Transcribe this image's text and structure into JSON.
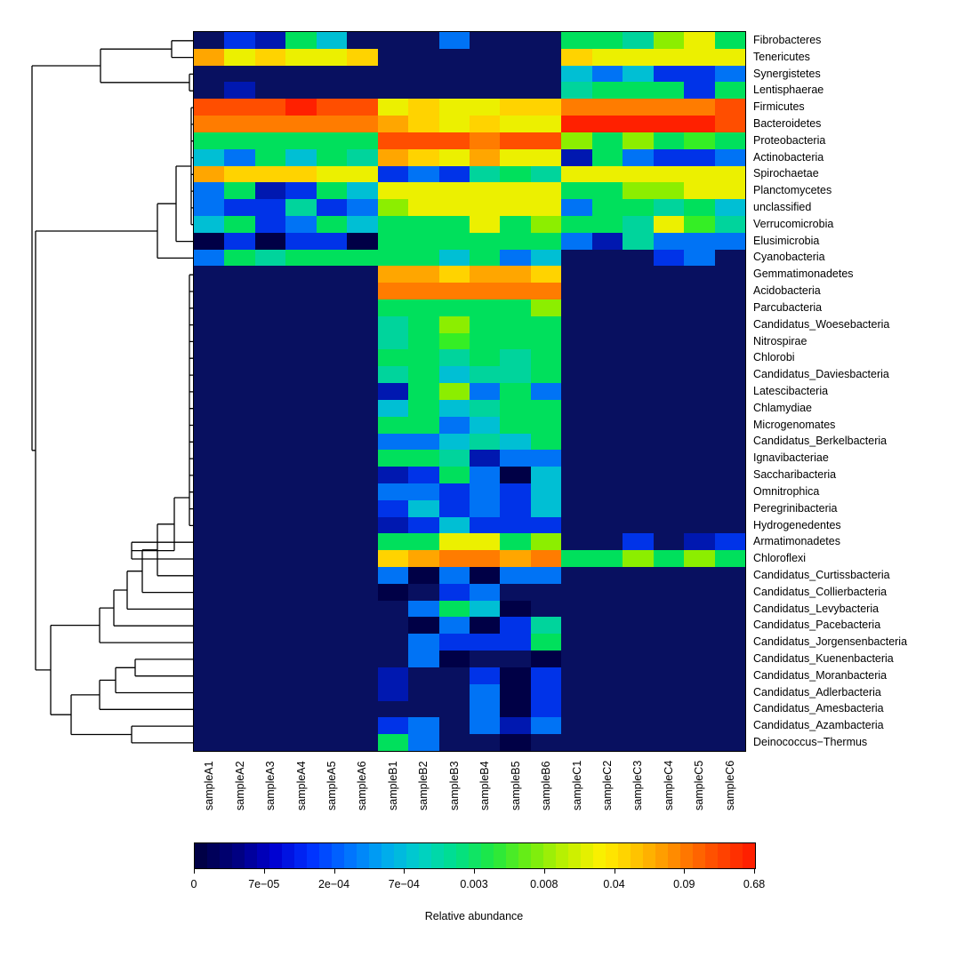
{
  "chart_data": {
    "type": "heatmap",
    "title": "",
    "legend_label": "Relative abundance",
    "layout": {
      "legend_position": "bottom",
      "row_dendrogram": "left",
      "row_labels": "right",
      "column_labels": "bottom-rotated"
    },
    "columns": [
      "sampleA1",
      "sampleA2",
      "sampleA3",
      "sampleA4",
      "sampleA5",
      "sampleA6",
      "sampleB1",
      "sampleB2",
      "sampleB3",
      "sampleB4",
      "sampleB5",
      "sampleB6",
      "sampleC1",
      "sampleC2",
      "sampleC3",
      "sampleC4",
      "sampleC5",
      "sampleC6"
    ],
    "rows": [
      "Fibrobacteres",
      "Tenericutes",
      "Synergistetes",
      "Lentisphaerae",
      "Firmicutes",
      "Bacteroidetes",
      "Proteobacteria",
      "Actinobacteria",
      "Spirochaetae",
      "Planctomycetes",
      "unclassified",
      "Verrucomicrobia",
      "Elusimicrobia",
      "Cyanobacteria",
      "Gemmatimonadetes",
      "Acidobacteria",
      "Parcubacteria",
      "Candidatus_Woesebacteria",
      "Nitrospirae",
      "Chlorobi",
      "Candidatus_Daviesbacteria",
      "Latescibacteria",
      "Chlamydiae",
      "Microgenomates",
      "Candidatus_Berkelbacteria",
      "Ignavibacteriae",
      "Saccharibacteria",
      "Omnitrophica",
      "Peregrinibacteria",
      "Hydrogenedentes",
      "Armatimonadetes",
      "Chloroflexi",
      "Candidatus_Curtissbacteria",
      "Candidatus_Collierbacteria",
      "Candidatus_Levybacteria",
      "Candidatus_Pacebacteria",
      "Candidatus_Jorgensenbacteria",
      "Candidatus_Kuenenbacteria",
      "Candidatus_Moranbacteria",
      "Candidatus_Adlerbacteria",
      "Candidatus_Amesbacteria",
      "Candidatus_Azambacteria",
      "Deinococcus−Thermus"
    ],
    "palette": {
      "z": {
        "hex": "#000046",
        "value": 0
      },
      "0": {
        "hex": "#081060",
        "value": 0
      },
      "1": {
        "hex": "#0018b0",
        "value": 5e-05
      },
      "2": {
        "hex": "#0033e8",
        "value": 0.00015
      },
      "3": {
        "hex": "#0073f5",
        "value": 0.0003
      },
      "4": {
        "hex": "#00bfd4",
        "value": 0.0007
      },
      "5": {
        "hex": "#00d49c",
        "value": 0.0015
      },
      "6": {
        "hex": "#00e05c",
        "value": 0.004
      },
      "7": {
        "hex": "#35ee25",
        "value": 0.008
      },
      "8": {
        "hex": "#8cee00",
        "value": 0.015
      },
      "9": {
        "hex": "#ecf000",
        "value": 0.03
      },
      "a": {
        "hex": "#ffd300",
        "value": 0.06
      },
      "b": {
        "hex": "#ffa600",
        "value": 0.09
      },
      "c": {
        "hex": "#ff7c00",
        "value": 0.15
      },
      "d": {
        "hex": "#ff4e00",
        "value": 0.3
      },
      "e": {
        "hex": "#ff2000",
        "value": 0.55
      }
    },
    "matrix": [
      "021640003000665896",
      "b9a99a000000a99999",
      "000000000000434223",
      "010000000000566626",
      "dddedd9a99aacccccd",
      "ccccccba9a99eeeeed",
      "666666dddcdd868676",
      "436465ba9b99163223",
      "baaa99232565999999",
      "361264999999668899",
      "322523899999366564",
      "462364666968665975",
      "z2z22z666666315333",
      "365666664634000230",
      "000000bbabba000000",
      "000000cccccc000000",
      "000000666668000000",
      "000000568666000000",
      "000000567666000000",
      "000000665656000000",
      "000000564556000000",
      "000000168363000000",
      "000000464566000000",
      "000000663466000000",
      "000000334546000000",
      "000000665133000000",
      "0000001263z4000000",
      "000000332324000000",
      "000000242324000000",
      "000000124222000000",
      "000000669968002012",
      "000000abccbc668686",
      "0000003z3z33000000",
      "000000z02300000000",
      "0000000364z0000000",
      "0000000z3z25000000",
      "000000032226000000",
      "00000003z00z000000",
      "0000001002z2000000",
      "0000001003z2000000",
      "0000000003z2000000",
      "000000230313000000",
      "0000006300z0000000"
    ],
    "colorbar": {
      "label": "Relative abundance",
      "tick_labels": [
        "0",
        "7e−05",
        "2e−04",
        "7e−04",
        "0.003",
        "0.008",
        "0.04",
        "0.09",
        "0.68"
      ],
      "range": [
        0,
        0.68
      ],
      "steps": 45,
      "stops": [
        "#000046",
        "#000080",
        "#0000d0",
        "#0030ff",
        "#0070ff",
        "#00a8f0",
        "#00d0c8",
        "#00e088",
        "#20e840",
        "#70ee10",
        "#c0f000",
        "#fff000",
        "#ffc000",
        "#ff8800",
        "#ff5000",
        "#ff2000"
      ]
    }
  }
}
